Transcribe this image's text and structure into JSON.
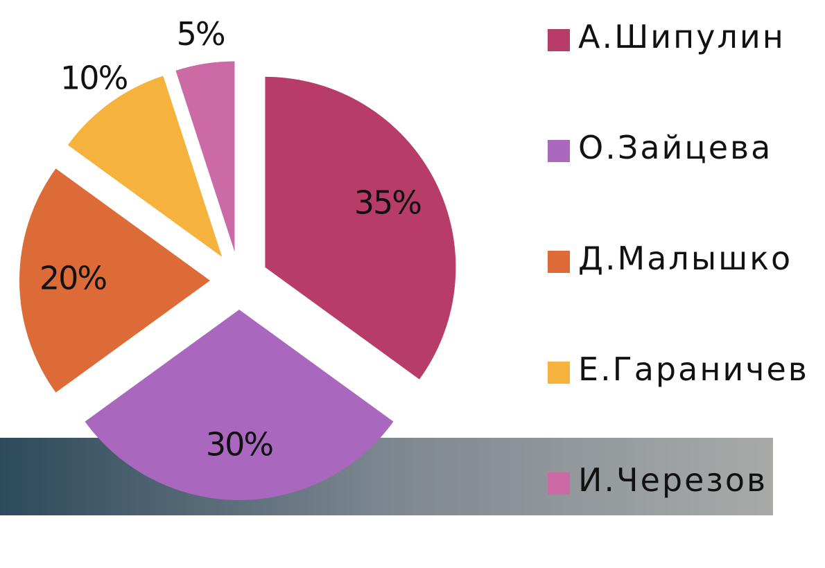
{
  "chart_data": {
    "type": "pie",
    "categories": [
      "А.Шипулин",
      "О.Зайцева",
      "Д.Малышко",
      "Е.Гараничев",
      "И.Черезов"
    ],
    "values": [
      35,
      30,
      20,
      10,
      5
    ],
    "value_labels": [
      "35%",
      "30%",
      "20%",
      "10%",
      "5%"
    ],
    "colors": [
      "#b83c68",
      "#a967be",
      "#dd6b37",
      "#f5b33e",
      "#cc6aa6"
    ],
    "legend": "right"
  }
}
